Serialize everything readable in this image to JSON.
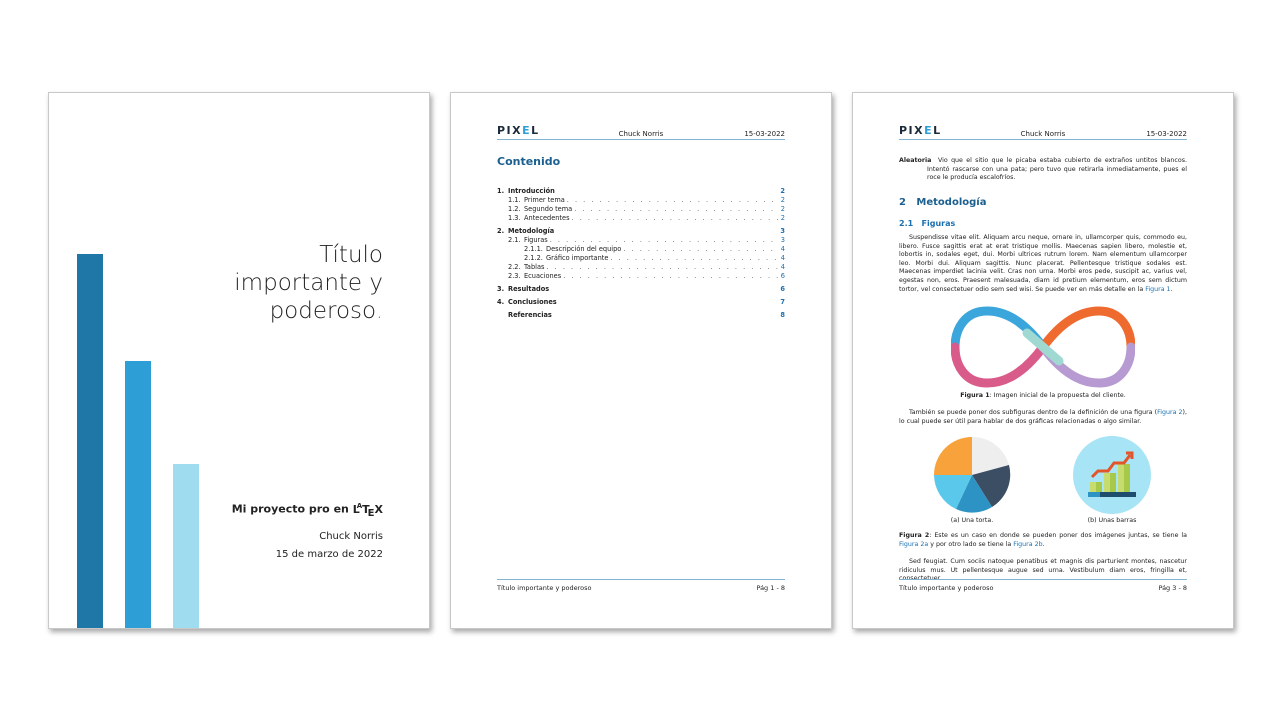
{
  "cover": {
    "title": "Título importante y poderoso",
    "title_lines": [
      "Título",
      "importante y",
      "poderoso"
    ],
    "subtitle": "Mi proyecto pro en",
    "latex_logo": "LATEX",
    "author": "Chuck Norris",
    "date": "15 de marzo de 2022",
    "colors": [
      "#1f77a8",
      "#2e9fd6",
      "#9fdcef"
    ]
  },
  "header": {
    "logo": "PIXEL",
    "author": "Chuck Norris",
    "date": "15-03-2022"
  },
  "footer": {
    "title": "Título importante y poderoso",
    "page_label": "Pág"
  },
  "toc": {
    "heading": "Contenido",
    "entries": [
      {
        "level": 1,
        "num": "1.",
        "label": "Introducción",
        "page": "2"
      },
      {
        "level": 2,
        "num": "1.1.",
        "label": "Primer tema",
        "page": "2"
      },
      {
        "level": 2,
        "num": "1.2.",
        "label": "Segundo tema",
        "page": "2"
      },
      {
        "level": 2,
        "num": "1.3.",
        "label": "Antecedentes",
        "page": "2"
      },
      {
        "level": 1,
        "num": "2.",
        "label": "Metodología",
        "page": "3"
      },
      {
        "level": 2,
        "num": "2.1.",
        "label": "Figuras",
        "page": "3"
      },
      {
        "level": 3,
        "num": "2.1.1.",
        "label": "Descripción del equipo",
        "page": "4"
      },
      {
        "level": 3,
        "num": "2.1.2.",
        "label": "Gráfico importante",
        "page": "4"
      },
      {
        "level": 2,
        "num": "2.2.",
        "label": "Tablas",
        "page": "4"
      },
      {
        "level": 2,
        "num": "2.3.",
        "label": "Ecuaciones",
        "page": "6"
      },
      {
        "level": 1,
        "num": "3.",
        "label": "Resultados",
        "page": "6"
      },
      {
        "level": 1,
        "num": "4.",
        "label": "Conclusiones",
        "page": "7"
      },
      {
        "level": 1,
        "num": "",
        "label": "Referencias",
        "page": "8"
      }
    ],
    "footer_page": "Pág 1 - 8"
  },
  "page3": {
    "aleatoria_term": "Aleatoria",
    "aleatoria_text": "Vio que el sitio que le picaba estaba cubierto de extraños untitos blancos. Intentó rascarse con una pata; pero tuvo que retirarla inmediatamente, pues el roce le producía escalofríos.",
    "section_num": "2",
    "section_title": "Metodología",
    "subsection_num": "2.1",
    "subsection_title": "Figuras",
    "para1": "Suspendisse vitae elit. Aliquam arcu neque, ornare in, ullamcorper quis, commodo eu, libero. Fusce sagittis erat at erat tristique mollis. Maecenas sapien libero, molestie et, lobortis in, sodales eget, dui. Morbi ultrices rutrum lorem. Nam elementum ullamcorper leo. Morbi dui. Aliquam sagittis. Nunc placerat. Pellentesque tristique sodales est. Maecenas imperdiet lacinia velit. Cras non urna. Morbi eros pede, suscipit ac, varius vel, egestas non, eros. Praesent malesuada, diam id pretium elementum, eros sem dictum tortor, vel consectetuer odio sem sed wisi. Se puede ver en más detalle en la",
    "para1_link": "Figura 1",
    "fig1_label": "Figura 1",
    "fig1_caption": ": Imagen inicial de la propuesta del cliente.",
    "para2_a": "También se puede poner dos subfiguras dentro de la definición de una figura (",
    "para2_link": "Figura 2",
    "para2_b": "), lo cual puede ser útil para hablar de dos gráficas relacionadas o algo similar.",
    "subfig_a": "(a) Una torta.",
    "subfig_b": "(b) Unas barras",
    "fig2_label": "Figura 2",
    "fig2_caption_a": ": Este es un caso en donde se pueden poner dos imágenes juntas, se tiene la",
    "fig2_link_a": "Figura 2a",
    "fig2_caption_b": "y por otro lado se tiene la",
    "fig2_link_b": "Figura 2b",
    "para3": "Sed feugiat. Cum sociis natoque penatibus et magnis dis parturient montes, nascetur ridiculus mus. Ut pellentesque augue sed urna. Vestibulum diam eros, fringilla et, consectetuer",
    "footer_page": "Pág 3 - 8"
  }
}
